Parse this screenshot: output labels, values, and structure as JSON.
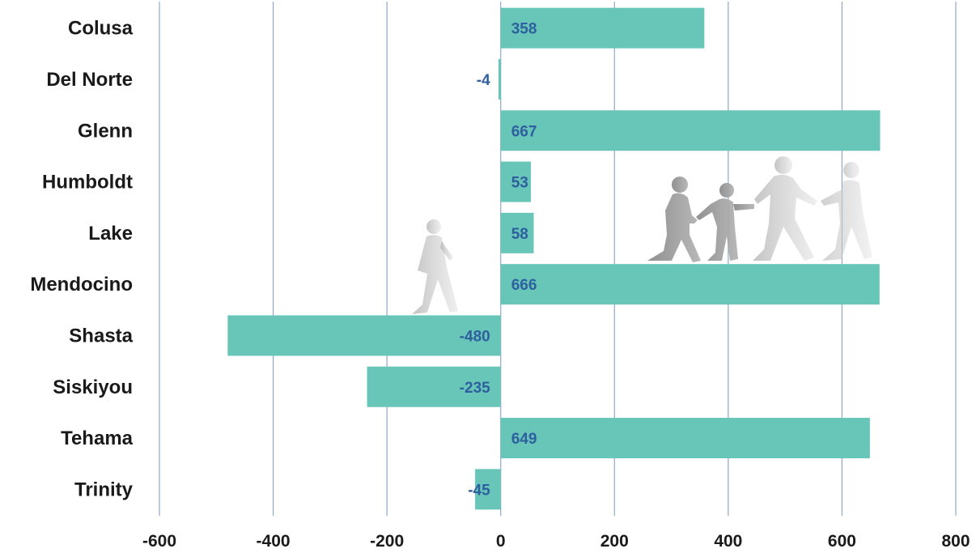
{
  "chart_data": {
    "type": "bar",
    "orientation": "horizontal",
    "categories": [
      "Colusa",
      "Del Norte",
      "Glenn",
      "Humboldt",
      "Lake",
      "Mendocino",
      "Shasta",
      "Siskiyou",
      "Tehama",
      "Trinity"
    ],
    "values": [
      358,
      -4,
      667,
      53,
      58,
      666,
      -480,
      -235,
      649,
      -45
    ],
    "data_labels": [
      "358",
      "-4",
      "667",
      "53",
      "58",
      "666",
      "-480",
      "-235",
      "649",
      "-45"
    ],
    "x_ticks": [
      -600,
      -400,
      -200,
      0,
      200,
      400,
      600,
      800
    ],
    "x_tick_labels": [
      "-600",
      "-400",
      "-200",
      "0",
      "200",
      "400",
      "600",
      "800"
    ],
    "xlim": [
      -600,
      800
    ],
    "grid": "vertical",
    "legend": "none",
    "title": "",
    "xlabel": "",
    "ylabel": "",
    "colors": {
      "bar": "#68c6b8",
      "grid": "#8fa8c8",
      "data_label": "#2e5f9e",
      "text": "#1a1a1a",
      "figure": "#9a9a9a"
    },
    "decoration": "walking-people-silhouettes"
  }
}
